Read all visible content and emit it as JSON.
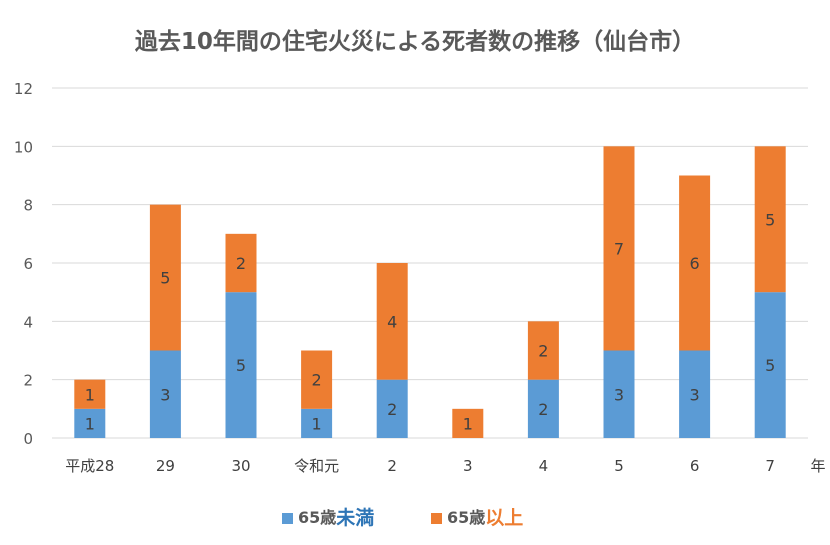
{
  "chart_data": {
    "type": "bar",
    "stacked": true,
    "title": "過去10年間の住宅火災による死者数の推移（仙台市）",
    "categories": [
      "平成28",
      "29",
      "30",
      "令和元",
      "2",
      "3",
      "4",
      "5",
      "6",
      "7"
    ],
    "x_unit_label": "年",
    "ylim": [
      0,
      12
    ],
    "yticks": [
      0,
      2,
      4,
      6,
      8,
      10,
      12
    ],
    "grid": true,
    "legend_position": "bottom",
    "series": [
      {
        "name": "65歳未満",
        "values": [
          1,
          3,
          5,
          1,
          2,
          0,
          2,
          3,
          3,
          5
        ],
        "color": "#5b9bd5"
      },
      {
        "name": "65歳以上",
        "values": [
          1,
          5,
          2,
          2,
          4,
          1,
          2,
          7,
          6,
          5
        ],
        "color": "#ed7d31"
      }
    ]
  },
  "legend": {
    "under65": {
      "prefix": "65歳",
      "suffix": "未満",
      "color": "#5b9bd5",
      "suffix_color": "#2e75b6"
    },
    "over65": {
      "prefix": "65歳",
      "suffix": "以上",
      "color": "#ed7d31",
      "suffix_color": "#ed7d31"
    }
  }
}
